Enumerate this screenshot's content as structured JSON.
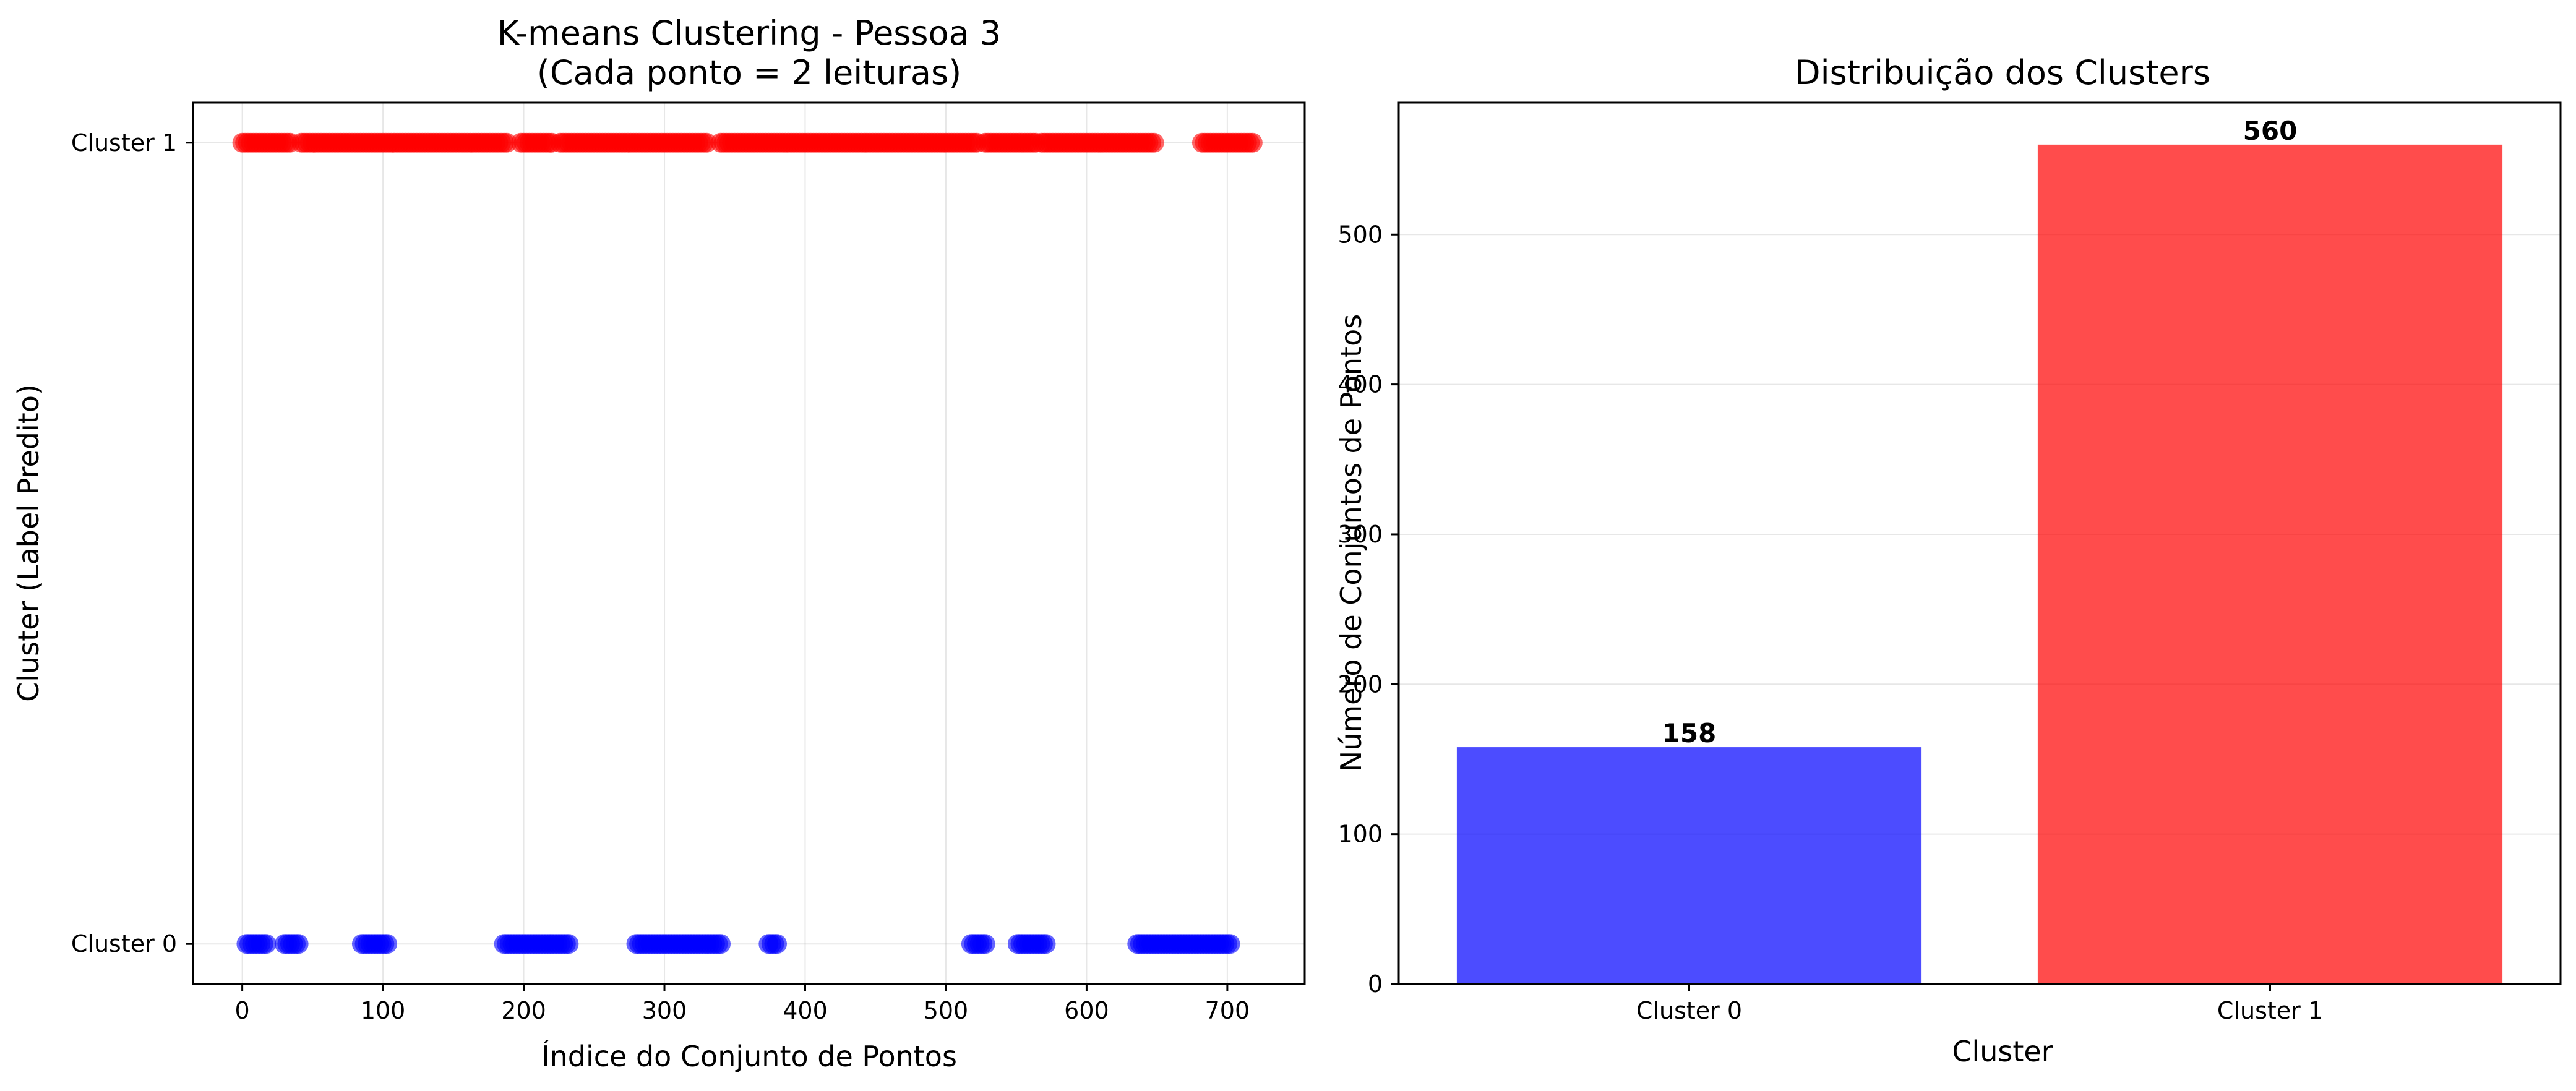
{
  "chart_data": [
    {
      "type": "scatter",
      "title_line1": "K-means Clustering - Pessoa 3",
      "title_line2": "(Cada ponto = 2 leituras)",
      "xlabel": "Índice do Conjunto de Pontos",
      "ylabel": "Cluster (Label Predito)",
      "xlim": [
        -35,
        755
      ],
      "ylim": [
        -0.05,
        1.05
      ],
      "xticks": [
        0,
        100,
        200,
        300,
        400,
        500,
        600,
        700
      ],
      "xtick_labels": [
        "0",
        "100",
        "200",
        "300",
        "400",
        "500",
        "600",
        "700"
      ],
      "yticks": [
        0,
        1
      ],
      "ytick_labels": [
        "Cluster 0",
        "Cluster 1"
      ],
      "grid": true,
      "series": [
        {
          "cluster": 1,
          "color": "#ff0000",
          "ranges": [
            [
              0,
              35
            ],
            [
              42,
              188
            ],
            [
              198,
              220
            ],
            [
              226,
              330
            ],
            [
              340,
              522
            ],
            [
              528,
              565
            ],
            [
              568,
              580
            ],
            [
              582,
              648
            ],
            [
              682,
              718
            ]
          ]
        },
        {
          "cluster": 0,
          "color": "#0000ff",
          "ranges": [
            [
              3,
              18
            ],
            [
              30,
              41
            ],
            [
              85,
              104
            ],
            [
              186,
              232
            ],
            [
              280,
              340
            ],
            [
              374,
              380
            ],
            [
              518,
              528
            ],
            [
              551,
              572
            ],
            [
              636,
              702
            ]
          ]
        }
      ]
    },
    {
      "type": "bar",
      "title": "Distribuição dos Clusters",
      "xlabel": "Cluster",
      "ylabel": "Número de Conjuntos de Pontos",
      "categories": [
        "Cluster 0",
        "Cluster 1"
      ],
      "values": [
        158,
        560
      ],
      "value_labels": [
        "158",
        "560"
      ],
      "colors": [
        "#0000ff",
        "#ff0000"
      ],
      "ylim": [
        0,
        588
      ],
      "yticks": [
        0,
        100,
        200,
        300,
        400,
        500
      ],
      "ytick_labels": [
        "0",
        "100",
        "200",
        "300",
        "400",
        "500"
      ],
      "grid": "y"
    }
  ]
}
